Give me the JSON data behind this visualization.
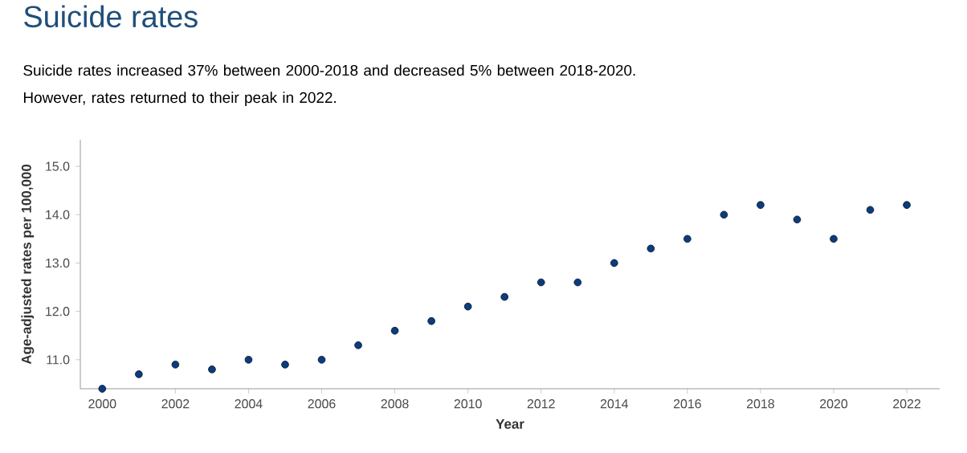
{
  "chart_data": {
    "type": "scatter",
    "title": "Suicide rates",
    "subtitle": "Suicide rates increased 37% between 2000-2018 and decreased 5% between 2018-2020. However, rates returned to their peak in 2022.",
    "xlabel": "Year",
    "ylabel": "Age-adjusted rates per 100,000",
    "x": [
      2000,
      2001,
      2002,
      2003,
      2004,
      2005,
      2006,
      2007,
      2008,
      2009,
      2010,
      2011,
      2012,
      2013,
      2014,
      2015,
      2016,
      2017,
      2018,
      2019,
      2020,
      2021,
      2022
    ],
    "series": [
      {
        "color": "#0b3c7d",
        "values": [
          10.4,
          10.7,
          10.9,
          10.8,
          11.0,
          10.9,
          11.0,
          11.3,
          11.6,
          11.8,
          12.1,
          12.3,
          12.6,
          12.6,
          13.0,
          13.3,
          13.5,
          14.0,
          14.2,
          13.9,
          13.5,
          14.1,
          14.2
        ]
      }
    ],
    "xlim": [
      1999.4,
      2022.9
    ],
    "ylim": [
      10.4,
      15.55
    ],
    "xticks": [
      2000,
      2002,
      2004,
      2006,
      2008,
      2010,
      2012,
      2014,
      2016,
      2018,
      2020,
      2022
    ],
    "yticks": [
      {
        "value": 11,
        "label": "11.0"
      },
      {
        "value": 12,
        "label": "12.0"
      },
      {
        "value": 13,
        "label": "13.0"
      },
      {
        "value": 14,
        "label": "14.0"
      },
      {
        "value": 15,
        "label": "15.0"
      }
    ],
    "marker": "circle",
    "grid": false
  }
}
